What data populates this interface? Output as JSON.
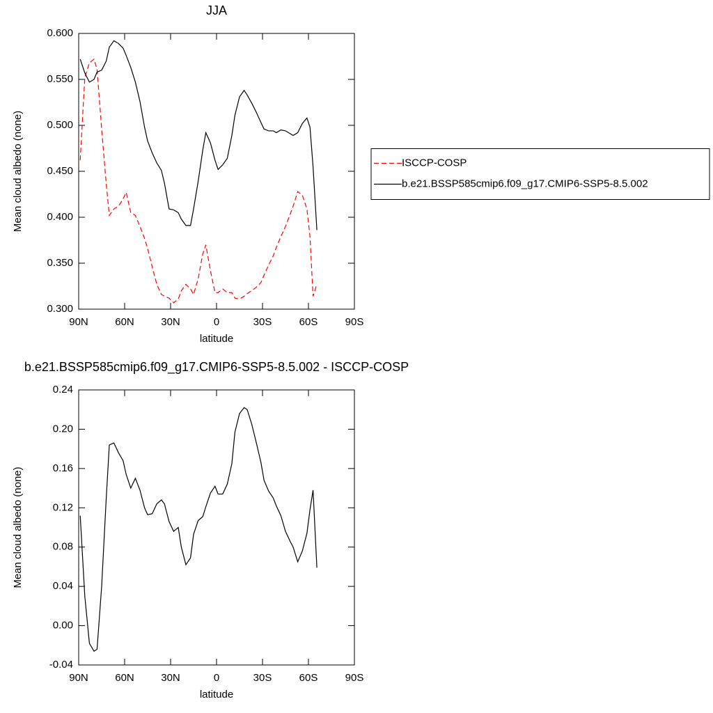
{
  "chart_data": [
    {
      "type": "line",
      "title": "JJA",
      "x_label": "latitude",
      "y_label": "Mean cloud albedo (none)",
      "x": [
        89,
        86,
        83,
        80,
        78,
        75,
        72,
        70,
        67,
        64,
        61,
        59,
        56,
        53,
        50,
        47,
        45,
        42,
        39,
        36,
        34,
        31,
        28,
        25,
        23,
        20,
        17,
        15,
        12,
        9,
        7,
        4,
        1,
        -1,
        -4,
        -7,
        -10,
        -12,
        -15,
        -18,
        -20,
        -23,
        -26,
        -29,
        -31,
        -34,
        -37,
        -39,
        -42,
        -45,
        -48,
        -50,
        -53,
        -56,
        -59,
        -61,
        -63,
        -65.5
      ],
      "xlim": [
        90,
        -90
      ],
      "xticks": [
        {
          "value": 90,
          "label": "90N"
        },
        {
          "value": 60,
          "label": "60N"
        },
        {
          "value": 30,
          "label": "30N"
        },
        0,
        {
          "value": -30,
          "label": "30S"
        },
        {
          "value": -60,
          "label": "60S"
        },
        {
          "value": -90,
          "label": "90S"
        }
      ],
      "ylim": [
        0.3,
        0.6
      ],
      "yticks": [
        {
          "value": 0.3,
          "label": "0.300"
        },
        {
          "value": 0.35,
          "label": "0.350"
        },
        {
          "value": 0.4,
          "label": "0.400"
        },
        {
          "value": 0.45,
          "label": "0.450"
        },
        {
          "value": 0.5,
          "label": "0.500"
        },
        {
          "value": 0.55,
          "label": "0.550"
        },
        {
          "value": 0.6,
          "label": "0.600"
        }
      ],
      "legend": "right",
      "series": [
        {
          "name": "ISCCP-COSP",
          "color": "#ff0000",
          "dashed": true,
          "values": [
            0.462,
            0.552,
            0.568,
            0.572,
            0.561,
            0.496,
            0.436,
            0.402,
            0.409,
            0.412,
            0.42,
            0.427,
            0.405,
            0.402,
            0.39,
            0.377,
            0.366,
            0.346,
            0.327,
            0.316,
            0.314,
            0.312,
            0.307,
            0.311,
            0.32,
            0.327,
            0.322,
            0.316,
            0.333,
            0.36,
            0.37,
            0.342,
            0.318,
            0.318,
            0.322,
            0.318,
            0.318,
            0.312,
            0.311,
            0.314,
            0.317,
            0.32,
            0.324,
            0.329,
            0.337,
            0.348,
            0.358,
            0.367,
            0.379,
            0.39,
            0.403,
            0.412,
            0.428,
            0.424,
            0.409,
            0.379,
            0.314,
            0.327
          ]
        },
        {
          "name": "b.e21.BSSP585cmip6.f09_g17.CMIP6-SSP5-8.5.002",
          "color": "#000000",
          "dashed": false,
          "values": [
            0.572,
            0.557,
            0.547,
            0.55,
            0.558,
            0.56,
            0.57,
            0.585,
            0.592,
            0.589,
            0.584,
            0.576,
            0.563,
            0.547,
            0.526,
            0.498,
            0.483,
            0.47,
            0.459,
            0.451,
            0.437,
            0.409,
            0.408,
            0.405,
            0.398,
            0.391,
            0.391,
            0.409,
            0.439,
            0.473,
            0.492,
            0.481,
            0.462,
            0.452,
            0.457,
            0.464,
            0.489,
            0.511,
            0.531,
            0.538,
            0.533,
            0.524,
            0.514,
            0.503,
            0.496,
            0.494,
            0.494,
            0.492,
            0.495,
            0.494,
            0.491,
            0.489,
            0.492,
            0.502,
            0.508,
            0.498,
            0.455,
            0.386
          ]
        }
      ]
    },
    {
      "type": "line",
      "title": "b.e21.BSSP585cmip6.f09_g17.CMIP6-SSP5-8.5.002 - ISCCP-COSP",
      "x_label": "latitude",
      "y_label": "Mean cloud albedo (none)",
      "x": [
        89,
        86,
        83,
        80,
        78,
        75,
        72,
        70,
        67,
        64,
        61,
        59,
        56,
        53,
        50,
        47,
        45,
        42,
        39,
        36,
        34,
        31,
        28,
        25,
        23,
        20,
        17,
        15,
        12,
        9,
        7,
        4,
        1,
        -1,
        -4,
        -7,
        -10,
        -12,
        -15,
        -18,
        -20,
        -23,
        -26,
        -29,
        -31,
        -34,
        -37,
        -39,
        -42,
        -45,
        -48,
        -50,
        -53,
        -56,
        -59,
        -61,
        -63,
        -65.5
      ],
      "xlim": [
        90,
        -90
      ],
      "xticks": [
        {
          "value": 90,
          "label": "90N"
        },
        {
          "value": 60,
          "label": "60N"
        },
        {
          "value": 30,
          "label": "30N"
        },
        0,
        {
          "value": -30,
          "label": "30S"
        },
        {
          "value": -60,
          "label": "60S"
        },
        {
          "value": -90,
          "label": "90S"
        }
      ],
      "ylim": [
        -0.04,
        0.24
      ],
      "yticks": [
        -0.04,
        {
          "value": 0,
          "label": "0.00"
        },
        0.04,
        0.08,
        0.12,
        0.16,
        {
          "value": 0.2,
          "label": "0.20"
        },
        0.24
      ],
      "color": "#000000",
      "values": [
        0.112,
        0.03,
        -0.018,
        -0.026,
        -0.024,
        0.04,
        0.13,
        0.184,
        0.186,
        0.176,
        0.168,
        0.154,
        0.14,
        0.15,
        0.138,
        0.12,
        0.113,
        0.114,
        0.124,
        0.128,
        0.124,
        0.106,
        0.096,
        0.1,
        0.08,
        0.062,
        0.069,
        0.093,
        0.107,
        0.111,
        0.121,
        0.135,
        0.142,
        0.134,
        0.134,
        0.144,
        0.165,
        0.197,
        0.216,
        0.222,
        0.22,
        0.205,
        0.186,
        0.166,
        0.148,
        0.137,
        0.13,
        0.122,
        0.112,
        0.096,
        0.086,
        0.08,
        0.065,
        0.076,
        0.094,
        0.118,
        0.138,
        0.059
      ]
    }
  ]
}
